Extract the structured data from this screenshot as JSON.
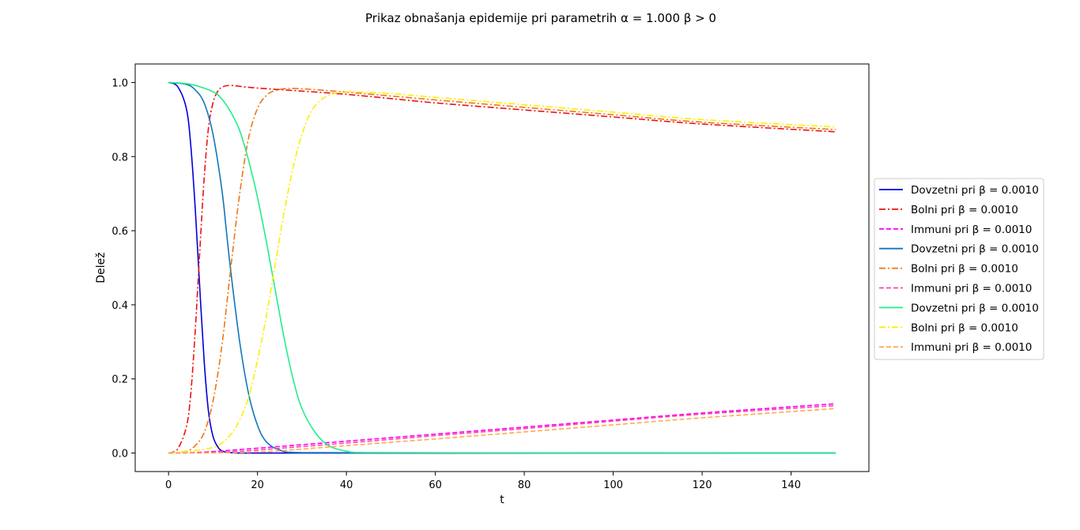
{
  "chart_data": {
    "type": "line",
    "title": "Prikaz obnašanja epidemije pri parametrih α = 1.000 β > 0",
    "xlabel": "t",
    "ylabel": "Delež",
    "xlim": [
      -7.5,
      157.5
    ],
    "ylim": [
      -0.05,
      1.05
    ],
    "xticks": [
      0,
      20,
      40,
      60,
      80,
      100,
      120,
      140
    ],
    "yticks": [
      0.0,
      0.2,
      0.4,
      0.6,
      0.8,
      1.0
    ],
    "xtick_labels": [
      "0",
      "20",
      "40",
      "60",
      "80",
      "100",
      "120",
      "140"
    ],
    "ytick_labels": [
      "0.0",
      "0.2",
      "0.4",
      "0.6",
      "0.8",
      "1.0"
    ],
    "grid": false,
    "legend_position": "outside-right",
    "series": [
      {
        "name": "Dovzetni pri β = 0.0010",
        "color": "#0000dd",
        "dash": "solid",
        "x": [
          0,
          2,
          4,
          5,
          6,
          7,
          8,
          9,
          10,
          11,
          12,
          14,
          20,
          150
        ],
        "y": [
          1.0,
          0.99,
          0.93,
          0.83,
          0.66,
          0.45,
          0.25,
          0.11,
          0.045,
          0.018,
          0.006,
          0.001,
          0,
          0
        ]
      },
      {
        "name": "Bolni pri β = 0.0010",
        "color": "#ee1111",
        "dash": "dashdot",
        "x": [
          0,
          2,
          4,
          5,
          6,
          7,
          8,
          9,
          10,
          11,
          12,
          14,
          20,
          40,
          60,
          80,
          100,
          120,
          150
        ],
        "y": [
          0,
          0.01,
          0.07,
          0.16,
          0.33,
          0.54,
          0.74,
          0.88,
          0.945,
          0.975,
          0.987,
          0.992,
          0.985,
          0.968,
          0.945,
          0.926,
          0.907,
          0.888,
          0.867
        ]
      },
      {
        "name": "Immuni pri β = 0.0010",
        "color": "#ff00ff",
        "dash": "dashed",
        "x": [
          0,
          5,
          10,
          20,
          40,
          60,
          80,
          100,
          120,
          150
        ],
        "y": [
          0,
          0.001,
          0.004,
          0.013,
          0.032,
          0.051,
          0.07,
          0.089,
          0.108,
          0.133
        ]
      },
      {
        "name": "Dovzetni pri β = 0.0010",
        "color": "#1177bb",
        "dash": "solid",
        "x": [
          0,
          4,
          6,
          8,
          10,
          12,
          13,
          14,
          16,
          18,
          20,
          22,
          25,
          30,
          150
        ],
        "y": [
          1.0,
          0.995,
          0.98,
          0.945,
          0.86,
          0.71,
          0.6,
          0.49,
          0.3,
          0.16,
          0.075,
          0.03,
          0.008,
          0.001,
          0
        ]
      },
      {
        "name": "Bolni pri β = 0.0010",
        "color": "#ee7711",
        "dash": "dashdot",
        "x": [
          0,
          4,
          6,
          8,
          10,
          12,
          14,
          16,
          18,
          20,
          22,
          24,
          28,
          40,
          60,
          80,
          100,
          120,
          150
        ],
        "y": [
          0,
          0.005,
          0.02,
          0.055,
          0.14,
          0.29,
          0.5,
          0.7,
          0.85,
          0.93,
          0.965,
          0.978,
          0.984,
          0.974,
          0.953,
          0.933,
          0.913,
          0.893,
          0.873
        ]
      },
      {
        "name": "Immuni pri β = 0.0010",
        "color": "#ff44aa",
        "dash": "dashed",
        "x": [
          0,
          10,
          15,
          20,
          40,
          60,
          80,
          100,
          120,
          150
        ],
        "y": [
          0,
          0.001,
          0.004,
          0.008,
          0.027,
          0.047,
          0.066,
          0.086,
          0.105,
          0.128
        ]
      },
      {
        "name": "Dovzetni pri β = 0.0010",
        "color": "#22ee88",
        "dash": "solid",
        "x": [
          0,
          5,
          10,
          12,
          14,
          16,
          18,
          20,
          22,
          24,
          26,
          28,
          30,
          33,
          36,
          40,
          45,
          150
        ],
        "y": [
          1.0,
          0.995,
          0.975,
          0.955,
          0.92,
          0.87,
          0.79,
          0.69,
          0.57,
          0.44,
          0.31,
          0.2,
          0.12,
          0.055,
          0.02,
          0.005,
          0.001,
          0
        ]
      },
      {
        "name": "Bolni pri β = 0.0010",
        "color": "#ffee00",
        "dash": "dashdot",
        "x": [
          0,
          10,
          14,
          16,
          18,
          20,
          22,
          24,
          26,
          28,
          30,
          32,
          34,
          36,
          40,
          50,
          60,
          80,
          100,
          120,
          150
        ],
        "y": [
          0,
          0.015,
          0.05,
          0.09,
          0.15,
          0.25,
          0.37,
          0.51,
          0.65,
          0.77,
          0.86,
          0.92,
          0.95,
          0.965,
          0.975,
          0.97,
          0.96,
          0.94,
          0.92,
          0.9,
          0.88
        ]
      },
      {
        "name": "Immuni pri β = 0.0010",
        "color": "#ffaa55",
        "dash": "dashed",
        "x": [
          0,
          15,
          20,
          25,
          40,
          60,
          80,
          100,
          120,
          150
        ],
        "y": [
          0,
          0.001,
          0.003,
          0.006,
          0.02,
          0.038,
          0.057,
          0.076,
          0.095,
          0.12
        ]
      }
    ]
  }
}
